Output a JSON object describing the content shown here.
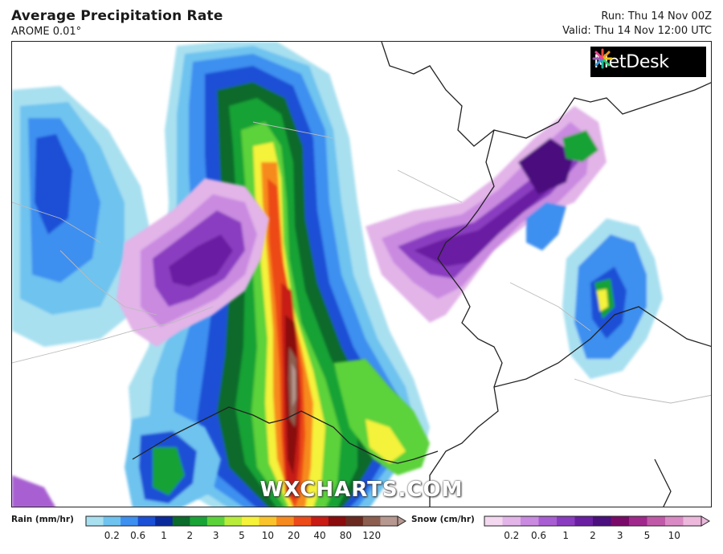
{
  "header": {
    "title": "Average Precipitation Rate",
    "model": "AROME 0.01°",
    "run": "Run: Thu 14 Nov 00Z",
    "valid": "Valid: Thu 14 Nov 12:00 UTC"
  },
  "logo": {
    "text": "MetDesk",
    "icon": "metdesk-star-icon"
  },
  "watermark": "WXCHARTS.COM",
  "legend": {
    "rain": {
      "title": "Rain (mm/hr)",
      "labels": [
        "0.2",
        "0.6",
        "1",
        "2",
        "3",
        "5",
        "10",
        "20",
        "40",
        "80",
        "120"
      ],
      "colors": [
        "#a8e0f0",
        "#6ec3ef",
        "#3d8ff0",
        "#1b4fd6",
        "#0a2a9c",
        "#0a6b2a",
        "#19a236",
        "#5cd23a",
        "#b8ec3a",
        "#f5f23a",
        "#f9c32b",
        "#f78a1e",
        "#ec4a19",
        "#c81b14",
        "#8a0c0c",
        "#6a2a20",
        "#8c5e50",
        "#b69890"
      ]
    },
    "snow": {
      "title": "Snow (cm/hr)",
      "labels": [
        "0.2",
        "0.6",
        "1",
        "2",
        "3",
        "5",
        "10"
      ],
      "colors": [
        "#f3d8f0",
        "#e2b4e8",
        "#c98ae0",
        "#a85ed2",
        "#8a3cc0",
        "#6a1ea2",
        "#4b0f7e",
        "#7a0a6a",
        "#a0288c",
        "#c05aa8",
        "#d98ac4",
        "#ecb8dc"
      ]
    }
  }
}
